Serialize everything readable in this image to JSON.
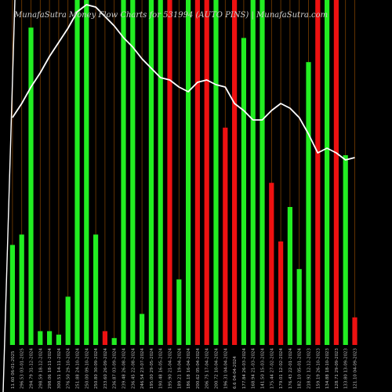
{
  "watermark": "MunafaSutra  Money Flow Charts for 531994 (AUTO PINS) | MunafaSutra.com",
  "chart_data": {
    "type": "bar",
    "title": "",
    "xlabel": "",
    "ylabel": "",
    "colors": {
      "up": "#22ee22",
      "down": "#ee1111",
      "line": "#ffffff",
      "grid": "#7a3f00"
    },
    "grid": "vertical",
    "ylim": [
      0,
      100
    ],
    "categories": [
      "11.60 06-01-2025",
      "296.53 03-01-2025",
      "294.79 31-12-2024",
      "298.59 18-12-2024",
      "298.06 18-11-2024",
      "300.51 14-11-2024",
      "276.50 29-10-2024",
      "251.88 24-10-2024",
      "250.00 09-10-2024",
      "250.80 30-09-2024",
      "233.60 26-09-2024",
      "236.87 03-09-2024",
      "239.48 26-08-2024",
      "236.45 22-08-2024",
      "246.54 23-07-2024",
      "195.00 29-05-2024",
      "190.48 16-05-2024",
      "195.90 21-04-2024",
      "189.21 19-04-2024",
      "186.18 16-04-2024",
      "200.62 05-04-2024",
      "206.75 17-04-2024",
      "200.72 10-04-2024",
      "196.31 04-04-2024",
      "6.6 04-04-2024",
      "177.84 26-03-2024",
      "168.94 21-03-2024",
      "141.50 15-03-2024",
      "175.44 27-02-2024",
      "179.01 12-02-2024",
      "176.43 22-01-2024",
      "182.10 05-01-2024",
      "218.92 12-12-2023",
      "159.19 26-10-2023",
      "134.88 18-10-2023",
      "128.71 29-09-2023",
      "133.80 13-09-2023",
      "121.10 04-09-2023"
    ],
    "series": [
      {
        "values": [
          29,
          32,
          92,
          4,
          4,
          3,
          14,
          100,
          100,
          32,
          4,
          2,
          100,
          100,
          9,
          100,
          100,
          100,
          19,
          100,
          100,
          100,
          100,
          63,
          100,
          89,
          100,
          100,
          47,
          30,
          40,
          22,
          82,
          100,
          100,
          100,
          55,
          8
        ],
        "direction": [
          "up",
          "up",
          "up",
          "up",
          "up",
          "up",
          "up",
          "up",
          "up",
          "up",
          "down",
          "up",
          "up",
          "up",
          "up",
          "up",
          "up",
          "down",
          "up",
          "up",
          "down",
          "down",
          "up",
          "down",
          "down",
          "up",
          "up",
          "up",
          "down",
          "down",
          "up",
          "up",
          "up",
          "down",
          "up",
          "down",
          "up",
          "down"
        ]
      },
      {
        "type": "line",
        "values": [
          125,
          131,
          138,
          144,
          151,
          157,
          163,
          170,
          173,
          172,
          168,
          164,
          159,
          155,
          150,
          146,
          142,
          141,
          138,
          136,
          140,
          141,
          139,
          138,
          131,
          128,
          124,
          124,
          128,
          131,
          129,
          125,
          118,
          110,
          112,
          110,
          107,
          108
        ]
      }
    ]
  }
}
